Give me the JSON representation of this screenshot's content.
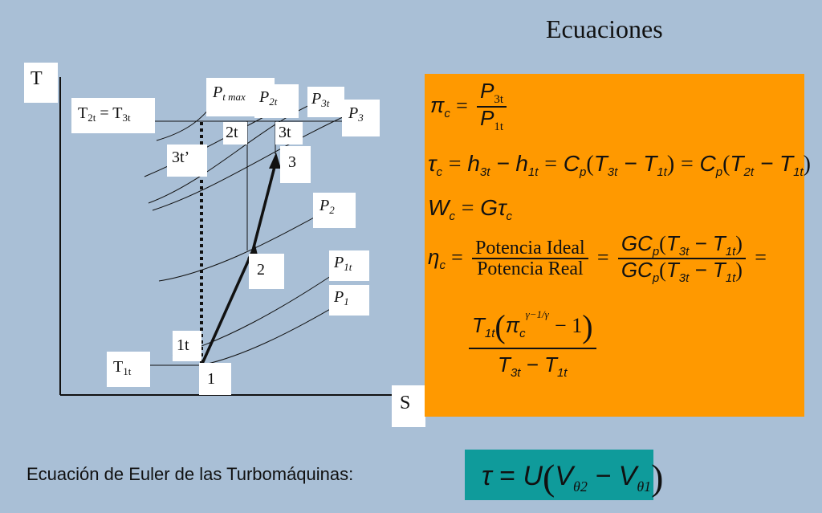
{
  "title": "Ecuaciones",
  "diagram": {
    "axis_t": "T",
    "axis_s": "S",
    "t2t_eq_t3t": "T2t = T3t",
    "t1t": "T1t",
    "pressure_labels": {
      "pt_max": "Pt max",
      "p2t": "P2t",
      "p3t": "P3t",
      "p3": "P3",
      "p2": "P2",
      "p1t": "P1t",
      "p1": "P1"
    },
    "points": {
      "p1": "1",
      "p1t": "1t",
      "p2": "2",
      "p2t": "2t",
      "p3": "3",
      "p3t": "3t",
      "p3t_prime": "3t’"
    }
  },
  "equations": {
    "pi_c": "πc = P3t / P1t",
    "tau_c": "τc = h3t − h1t = Cp(T3t − T1t) = Cp(T2t − T1t)",
    "w_c": "Wc = Gτc",
    "eta_c_num": "Potencia Ideal",
    "eta_c_den": "Potencia Real",
    "eta_c": "ηc = Potencia Ideal / Potencia Real = GCp(T3t − T1t) / GCp(T3t − T1t) = T1t(πc^((γ−1)/γ) − 1) / (T3t − T1t)"
  },
  "euler": {
    "label": "Ecuación de Euler de las Turbomáquinas:",
    "equation": "τ = U(Vθ2 − Vθ1)"
  },
  "colors": {
    "background": "#a9bfd6",
    "equation_box": "#ff9900",
    "euler_box": "#0f9b9b"
  }
}
